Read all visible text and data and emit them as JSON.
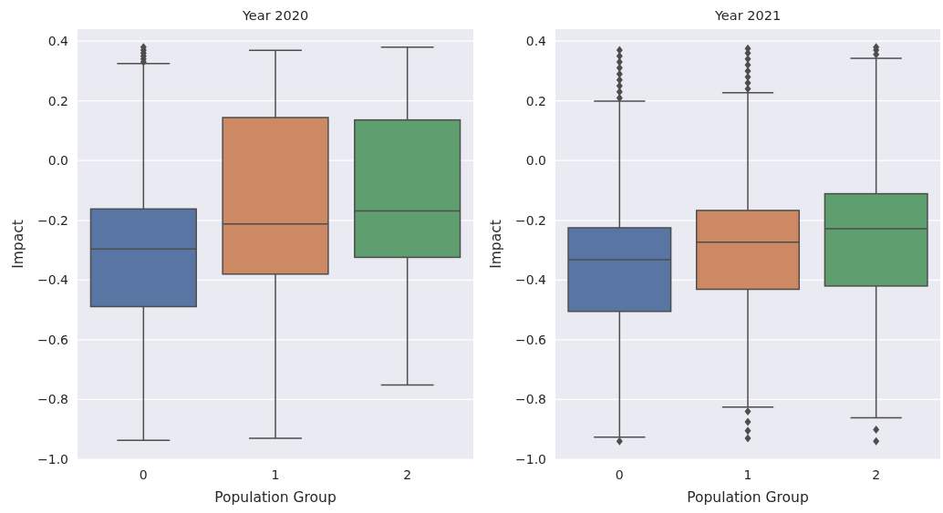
{
  "chart_data": [
    {
      "type": "box",
      "title": "Year 2020",
      "xlabel": "Population Group",
      "ylabel": "Impact",
      "categories": [
        "0",
        "1",
        "2"
      ],
      "colors": [
        "#5875a4",
        "#cc8963",
        "#5f9e6e"
      ],
      "boxes": [
        {
          "low": -0.937,
          "q1": -0.489,
          "median": -0.296,
          "q3": -0.162,
          "high": 0.325,
          "outliers": [
            0.33,
            0.34,
            0.35,
            0.36,
            0.37,
            0.38
          ]
        },
        {
          "low": -0.93,
          "q1": -0.38,
          "median": -0.212,
          "q3": 0.144,
          "high": 0.369
        },
        {
          "low": -0.751,
          "q1": -0.324,
          "median": -0.169,
          "q3": 0.136,
          "high": 0.38
        }
      ],
      "ylim": [
        -1.0,
        0.44
      ],
      "yticks": [
        {
          "value": -1.0,
          "label": "−1.0"
        },
        {
          "value": -0.8,
          "label": "−0.8"
        },
        {
          "value": -0.6,
          "label": "−0.6"
        },
        {
          "value": -0.4,
          "label": "−0.4"
        },
        {
          "value": -0.2,
          "label": "−0.2"
        },
        {
          "value": 0,
          "label": "0.0"
        },
        {
          "value": 0.2,
          "label": "0.2"
        },
        {
          "value": 0.4,
          "label": "0.4"
        }
      ],
      "grid": "y"
    },
    {
      "type": "box",
      "title": "Year 2021",
      "xlabel": "Population Group",
      "ylabel": "Impact",
      "categories": [
        "0",
        "1",
        "2"
      ],
      "colors": [
        "#5875a4",
        "#cc8963",
        "#5f9e6e"
      ],
      "boxes": [
        {
          "low": -0.926,
          "q1": -0.505,
          "median": -0.332,
          "q3": -0.225,
          "high": 0.199,
          "outliers": [
            0.21,
            0.23,
            0.25,
            0.27,
            0.29,
            0.31,
            0.33,
            0.35,
            0.37,
            -0.94
          ]
        },
        {
          "low": -0.825,
          "q1": -0.431,
          "median": -0.273,
          "q3": -0.167,
          "high": 0.227,
          "outliers": [
            0.24,
            0.26,
            0.28,
            0.3,
            0.32,
            0.34,
            0.36,
            0.375,
            -0.84,
            -0.875,
            -0.905,
            -0.93
          ]
        },
        {
          "low": -0.861,
          "q1": -0.42,
          "median": -0.228,
          "q3": -0.111,
          "high": 0.342,
          "outliers": [
            0.355,
            0.37,
            0.38,
            -0.901,
            -0.94
          ]
        }
      ],
      "ylim": [
        -1.0,
        0.44
      ],
      "yticks": [
        {
          "value": -1.0,
          "label": "−1.0"
        },
        {
          "value": -0.8,
          "label": "−0.8"
        },
        {
          "value": -0.6,
          "label": "−0.6"
        },
        {
          "value": -0.4,
          "label": "−0.4"
        },
        {
          "value": -0.2,
          "label": "−0.2"
        },
        {
          "value": 0,
          "label": "0.0"
        },
        {
          "value": 0.2,
          "label": "0.2"
        },
        {
          "value": 0.4,
          "label": "0.4"
        }
      ],
      "grid": "y"
    }
  ]
}
